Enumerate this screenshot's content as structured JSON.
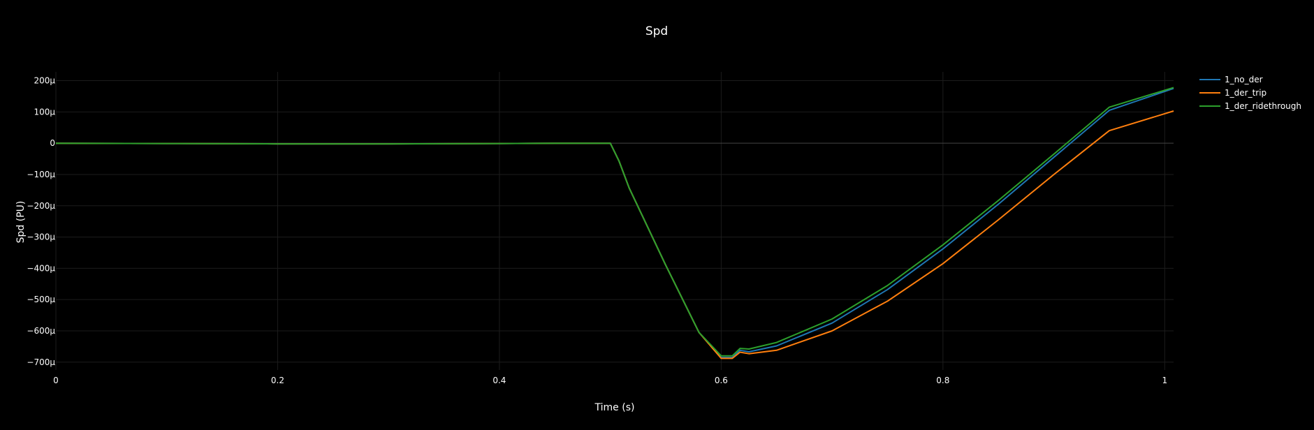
{
  "chart_data": {
    "type": "line",
    "title": "Spd",
    "xlabel": "Time (s)",
    "ylabel": "Spd (PU)",
    "xlim": [
      0,
      1.008
    ],
    "ylim": [
      -0.000725,
      0.000228
    ],
    "x_ticks": [
      0,
      0.2,
      0.4,
      0.6,
      0.8,
      1
    ],
    "x_tick_labels": [
      "0",
      "0.2",
      "0.4",
      "0.6",
      "0.8",
      "1"
    ],
    "y_ticks": [
      0.0002,
      0.0001,
      0,
      -0.0001,
      -0.0002,
      -0.0003,
      -0.0004,
      -0.0005,
      -0.0006,
      -0.0007
    ],
    "y_tick_labels": [
      "200µ",
      "100µ",
      "0",
      "−100µ",
      "−200µ",
      "−300µ",
      "−400µ",
      "−500µ",
      "−600µ",
      "−700µ"
    ],
    "grid": true,
    "legend_position": "top-right",
    "background": "#000000",
    "series": [
      {
        "name": "1_no_der",
        "color": "#1f77b4",
        "x": [
          0,
          0.1,
          0.2,
          0.3,
          0.4,
          0.45,
          0.5,
          0.508,
          0.517,
          0.55,
          0.58,
          0.6,
          0.61,
          0.617,
          0.625,
          0.65,
          0.7,
          0.75,
          0.8,
          0.85,
          0.9,
          0.95,
          1.008
        ],
        "y": [
          0,
          -1e-06,
          -2e-06,
          -2e-06,
          -1e-06,
          0,
          0,
          -5.8e-05,
          -0.000143,
          -0.00039,
          -0.000605,
          -0.000685,
          -0.000685,
          -0.000662,
          -0.000667,
          -0.000648,
          -0.000575,
          -0.000468,
          -0.000338,
          -0.000195,
          -4.5e-05,
          0.000105,
          0.000175
        ]
      },
      {
        "name": "1_der_trip",
        "color": "#ff7f0e",
        "x": [
          0,
          0.1,
          0.2,
          0.3,
          0.4,
          0.45,
          0.5,
          0.508,
          0.517,
          0.55,
          0.58,
          0.6,
          0.61,
          0.617,
          0.625,
          0.65,
          0.7,
          0.75,
          0.8,
          0.85,
          0.9,
          0.95,
          1.008
        ],
        "y": [
          0,
          -1e-06,
          -2e-06,
          -2e-06,
          -1e-06,
          0,
          0,
          -5.8e-05,
          -0.000143,
          -0.00039,
          -0.000605,
          -0.000688,
          -0.000688,
          -0.000668,
          -0.000673,
          -0.000662,
          -0.0006,
          -0.000505,
          -0.000385,
          -0.000245,
          -0.0001,
          4e-05,
          0.000103
        ]
      },
      {
        "name": "1_der_ridethrough",
        "color": "#2ca02c",
        "x": [
          0,
          0.1,
          0.2,
          0.3,
          0.4,
          0.45,
          0.5,
          0.508,
          0.517,
          0.55,
          0.58,
          0.6,
          0.61,
          0.617,
          0.625,
          0.65,
          0.7,
          0.75,
          0.8,
          0.85,
          0.9,
          0.95,
          1.008
        ],
        "y": [
          0,
          -1e-06,
          -2e-06,
          -2e-06,
          -1e-06,
          0,
          0,
          -5.8e-05,
          -0.000143,
          -0.00039,
          -0.000605,
          -0.00068,
          -0.00068,
          -0.000656,
          -0.000658,
          -0.000637,
          -0.000562,
          -0.000455,
          -0.000325,
          -0.000183,
          -3.5e-05,
          0.000115,
          0.000178
        ]
      }
    ]
  }
}
